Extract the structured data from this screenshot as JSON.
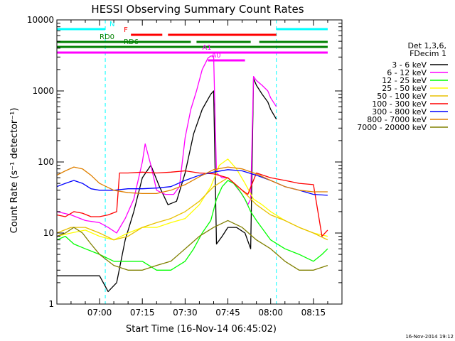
{
  "chart_data": {
    "type": "line",
    "title": "HESSI Observing Summary Count Rates",
    "xlabel": "Start Time (16-Nov-14 06:45:02)",
    "ylabel": "Count Rate (s⁻¹ detector⁻¹)",
    "xlim": [
      "06:45:02",
      "08:25:00"
    ],
    "ylim": [
      1,
      10000
    ],
    "y_scale": "log",
    "grid": false,
    "x_ticks": [
      "07:00",
      "07:15",
      "07:30",
      "07:45",
      "08:00",
      "08:15"
    ],
    "y_ticks": [
      "1",
      "10",
      "100",
      "1000",
      "10000"
    ],
    "legend": {
      "placement": "right",
      "header": [
        "Det 1,3,6,",
        "FDecim 1"
      ],
      "entries": [
        {
          "label": "3 - 6 keV",
          "color": "#000000"
        },
        {
          "label": "6 - 12 keV",
          "color": "#ff00ff"
        },
        {
          "label": "12 - 25 keV",
          "color": "#00ff00"
        },
        {
          "label": "25 - 50 keV",
          "color": "#ffff00"
        },
        {
          "label": "50 - 100 keV",
          "color": "#e8c000"
        },
        {
          "label": "100 - 300 keV",
          "color": "#ff0000"
        },
        {
          "label": "300 - 800 keV",
          "color": "#0000ff"
        },
        {
          "label": "800 - 7000 keV",
          "color": "#e08000"
        },
        {
          "label": "7000 - 20000 keV",
          "color": "#808000"
        }
      ]
    },
    "flag_bars": [
      {
        "label": "N",
        "color": "#00ffff",
        "segments": [
          [
            "06:45",
            "07:02"
          ],
          [
            "08:02",
            "08:20"
          ]
        ]
      },
      {
        "label": "F",
        "color": "#ff0000",
        "segments": [
          [
            "07:11",
            "07:22"
          ],
          [
            "07:24",
            "08:02"
          ]
        ]
      },
      {
        "label": "RD0",
        "color": "#008000",
        "segments": [
          [
            "06:45",
            "07:32"
          ],
          [
            "07:34",
            "07:53"
          ],
          [
            "07:56",
            "08:20"
          ]
        ]
      },
      {
        "label": "RD6",
        "color": "#008000",
        "segments": [
          [
            "06:45",
            "08:20"
          ]
        ]
      },
      {
        "label": "A1",
        "color": "#ff00ff",
        "segments": [
          [
            "06:45",
            "08:20"
          ]
        ]
      },
      {
        "label": "A0",
        "color": "#ff00ff",
        "segments": [
          [
            "07:38",
            "07:51"
          ]
        ]
      }
    ],
    "series": [
      {
        "name": "3 - 6 keV",
        "color": "#000000",
        "x": [
          "06:45",
          "06:50",
          "06:55",
          "07:00",
          "07:03",
          "07:06",
          "07:09",
          "07:12",
          "07:15",
          "07:18",
          "07:21",
          "07:24",
          "07:27",
          "07:30",
          "07:33",
          "07:36",
          "07:39",
          "07:40",
          "07:41",
          "07:43",
          "07:45",
          "07:48",
          "07:51",
          "07:53",
          "07:54",
          "07:55",
          "07:57",
          "07:59",
          "08:00",
          "08:02"
        ],
        "y": [
          2.5,
          2.5,
          2.5,
          2.5,
          1.5,
          2,
          8,
          20,
          60,
          90,
          45,
          25,
          28,
          70,
          250,
          550,
          900,
          1000,
          7,
          9,
          12,
          12,
          10,
          6,
          1500,
          1200,
          900,
          700,
          550,
          400
        ]
      },
      {
        "name": "6 - 12 keV",
        "color": "#ff00ff",
        "x": [
          "06:45",
          "06:50",
          "06:55",
          "07:00",
          "07:03",
          "07:06",
          "07:09",
          "07:12",
          "07:15",
          "07:16",
          "07:18",
          "07:20",
          "07:23",
          "07:26",
          "07:28",
          "07:30",
          "07:32",
          "07:34",
          "07:36",
          "07:38",
          "07:39",
          "07:40",
          "07:41",
          "07:43",
          "07:45",
          "07:47",
          "07:50",
          "07:52",
          "07:53",
          "07:54",
          "07:55",
          "07:57",
          "07:59",
          "08:00",
          "08:02"
        ],
        "y": [
          20,
          18,
          15,
          14,
          12,
          10,
          16,
          30,
          100,
          180,
          90,
          40,
          35,
          35,
          45,
          220,
          550,
          1000,
          2000,
          2900,
          3100,
          3100,
          70,
          60,
          60,
          50,
          35,
          25,
          30,
          1600,
          1400,
          1200,
          1000,
          800,
          600
        ]
      },
      {
        "name": "12 - 25 keV",
        "color": "#00ff00",
        "x": [
          "06:45",
          "06:48",
          "06:51",
          "06:55",
          "07:00",
          "07:05",
          "07:10",
          "07:15",
          "07:20",
          "07:25",
          "07:30",
          "07:33",
          "07:36",
          "07:39",
          "07:41",
          "07:43",
          "07:45",
          "07:47",
          "07:49",
          "07:51",
          "07:53",
          "07:55",
          "08:00",
          "08:05",
          "08:10",
          "08:15",
          "08:18",
          "08:20"
        ],
        "y": [
          8,
          9,
          7,
          6,
          5,
          4,
          4,
          4,
          3,
          3,
          4,
          6,
          10,
          15,
          30,
          45,
          55,
          50,
          40,
          30,
          20,
          15,
          8,
          6,
          5,
          4,
          5,
          6
        ]
      },
      {
        "name": "25 - 50 keV",
        "color": "#ffff00",
        "x": [
          "06:45",
          "06:50",
          "06:55",
          "07:00",
          "07:05",
          "07:10",
          "07:15",
          "07:20",
          "07:25",
          "07:30",
          "07:35",
          "07:39",
          "07:42",
          "07:45",
          "07:48",
          "07:51",
          "07:54",
          "07:57",
          "08:00",
          "08:05",
          "08:10",
          "08:15",
          "08:20"
        ],
        "y": [
          9,
          10,
          11,
          9,
          8,
          10,
          12,
          12,
          14,
          16,
          25,
          45,
          90,
          110,
          80,
          50,
          30,
          25,
          20,
          15,
          12,
          10,
          9
        ]
      },
      {
        "name": "50 - 100 keV",
        "color": "#e8c000",
        "x": [
          "06:45",
          "06:50",
          "06:55",
          "07:00",
          "07:05",
          "07:10",
          "07:15",
          "07:20",
          "07:25",
          "07:30",
          "07:35",
          "07:40",
          "07:45",
          "07:50",
          "07:55",
          "08:00",
          "08:05",
          "08:10",
          "08:15",
          "08:20"
        ],
        "y": [
          10,
          12,
          12,
          10,
          8,
          9,
          12,
          14,
          16,
          20,
          28,
          45,
          60,
          40,
          25,
          18,
          15,
          12,
          10,
          8
        ]
      },
      {
        "name": "100 - 300 keV",
        "color": "#ff0000",
        "x": [
          "06:45",
          "06:48",
          "06:51",
          "06:54",
          "06:57",
          "07:00",
          "07:03",
          "07:06",
          "07:07",
          "07:10",
          "07:15",
          "07:20",
          "07:25",
          "07:30",
          "07:35",
          "07:40",
          "07:45",
          "07:50",
          "07:52",
          "07:55",
          "08:00",
          "08:05",
          "08:10",
          "08:15",
          "08:18",
          "08:20"
        ],
        "y": [
          18,
          17,
          20,
          19,
          17,
          17,
          18,
          20,
          70,
          70,
          72,
          70,
          72,
          75,
          70,
          68,
          60,
          40,
          35,
          70,
          60,
          55,
          50,
          48,
          9,
          11
        ]
      },
      {
        "name": "300 - 800 keV",
        "color": "#0000ff",
        "x": [
          "06:45",
          "06:48",
          "06:51",
          "06:54",
          "06:57",
          "07:00",
          "07:05",
          "07:10",
          "07:15",
          "07:20",
          "07:25",
          "07:30",
          "07:35",
          "07:40",
          "07:45",
          "07:50",
          "07:55",
          "08:00",
          "08:05",
          "08:10",
          "08:15",
          "08:20"
        ],
        "y": [
          45,
          50,
          55,
          50,
          42,
          40,
          40,
          42,
          42,
          43,
          45,
          55,
          65,
          72,
          78,
          75,
          65,
          55,
          45,
          40,
          35,
          34
        ]
      },
      {
        "name": "800 - 7000 keV",
        "color": "#e08000",
        "x": [
          "06:45",
          "06:48",
          "06:51",
          "06:54",
          "06:57",
          "07:00",
          "07:05",
          "07:10",
          "07:15",
          "07:20",
          "07:25",
          "07:30",
          "07:35",
          "07:40",
          "07:45",
          "07:50",
          "07:55",
          "08:00",
          "08:05",
          "08:10",
          "08:15",
          "08:20"
        ],
        "y": [
          65,
          75,
          85,
          80,
          65,
          50,
          40,
          37,
          36,
          36,
          40,
          48,
          62,
          78,
          85,
          80,
          68,
          55,
          45,
          40,
          38,
          38
        ]
      },
      {
        "name": "7000 - 20000 keV",
        "color": "#808000",
        "x": [
          "06:45",
          "06:48",
          "06:51",
          "06:54",
          "06:57",
          "07:00",
          "07:05",
          "07:10",
          "07:15",
          "07:20",
          "07:25",
          "07:30",
          "07:35",
          "07:40",
          "07:45",
          "07:50",
          "07:55",
          "08:00",
          "08:05",
          "08:10",
          "08:15",
          "08:20"
        ],
        "y": [
          9,
          10,
          12,
          10,
          7,
          5,
          3.5,
          3,
          3,
          3.5,
          4,
          6,
          9,
          12,
          15,
          12,
          8,
          6,
          4,
          3,
          3,
          3.5
        ]
      }
    ]
  },
  "footer": {
    "timestamp": "16-Nov-2014 19:12"
  }
}
